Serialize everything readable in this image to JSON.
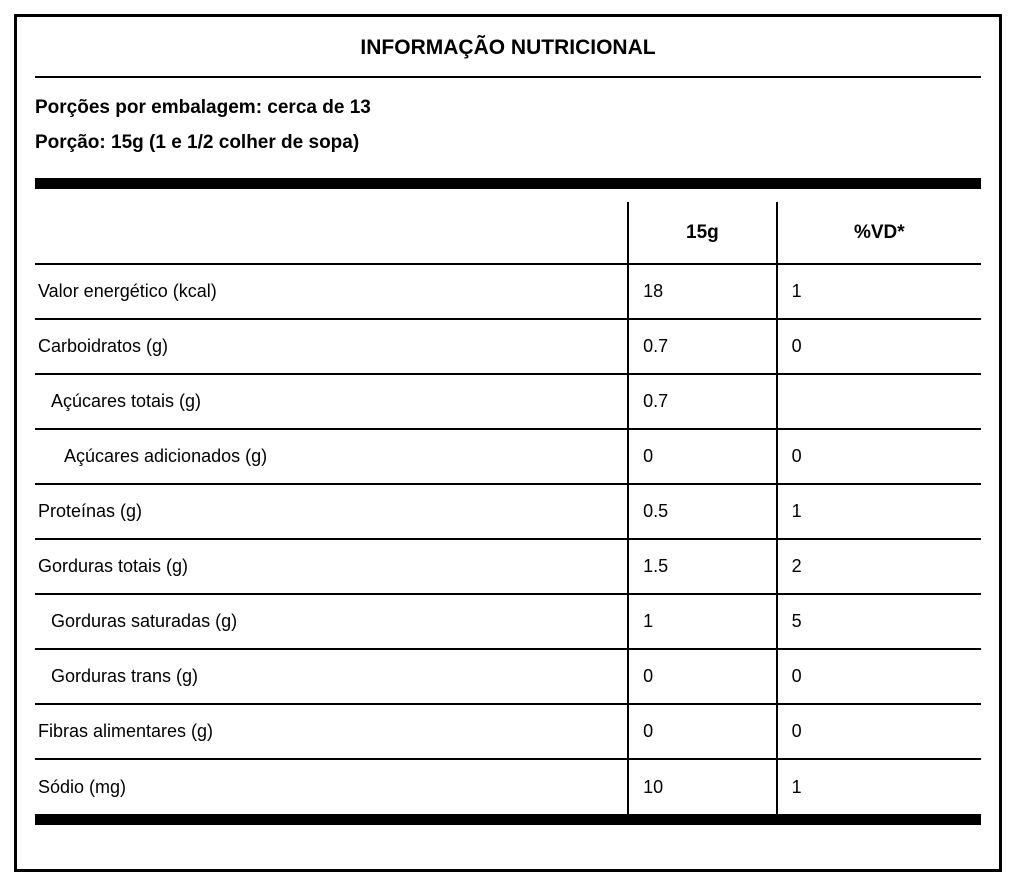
{
  "label": {
    "title": "INFORMAÇÃO NUTRICIONAL",
    "servings_per_package": "Porções por embalagem: cerca de 13",
    "serving_size": "Porção: 15g (1 e 1/2 colher de sopa)",
    "columns": {
      "name": "",
      "amount": "15g",
      "dv": "%VD*"
    },
    "rows": [
      {
        "name": "Valor energético (kcal)",
        "amount": "18",
        "dv": "1",
        "indent": 0
      },
      {
        "name": "Carboidratos (g)",
        "amount": "0.7",
        "dv": "0",
        "indent": 0
      },
      {
        "name": "Açúcares totais (g)",
        "amount": "0.7",
        "dv": "",
        "indent": 1
      },
      {
        "name": "Açúcares adicionados (g)",
        "amount": "0",
        "dv": "0",
        "indent": 2
      },
      {
        "name": "Proteínas (g)",
        "amount": "0.5",
        "dv": "1",
        "indent": 0
      },
      {
        "name": "Gorduras totais (g)",
        "amount": "1.5",
        "dv": "2",
        "indent": 0
      },
      {
        "name": "Gorduras saturadas (g)",
        "amount": "1",
        "dv": "5",
        "indent": 1
      },
      {
        "name": "Gorduras trans (g)",
        "amount": "0",
        "dv": "0",
        "indent": 1
      },
      {
        "name": "Fibras alimentares (g)",
        "amount": "0",
        "dv": "0",
        "indent": 0
      },
      {
        "name": "Sódio (mg)",
        "amount": "10",
        "dv": "1",
        "indent": 0
      }
    ],
    "colors": {
      "text": "#000000",
      "background": "#ffffff",
      "border": "#000000"
    }
  }
}
